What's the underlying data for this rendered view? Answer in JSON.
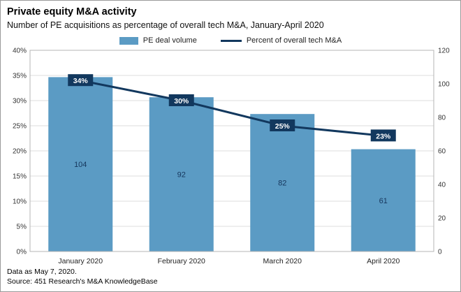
{
  "title": "Private equity M&A activity",
  "subtitle": "Number of PE acquisitions as percentage of overall tech M&A, January-April 2020",
  "footer": {
    "note": "Data as May 7, 2020.",
    "source": "Source: 451 Research's M&A KnowledgeBase"
  },
  "colors": {
    "bar": "#5b9bc4",
    "line": "#12385e",
    "label_box": "#12385e",
    "grid": "#dcdcdc",
    "plot_border": "#b5b5b5"
  },
  "chart_data": {
    "type": "bar",
    "subtype": "bar+line combo",
    "categories": [
      "January 2020",
      "February 2020",
      "March 2020",
      "April 2020"
    ],
    "series": [
      {
        "name": "PE deal volume",
        "type": "bar",
        "axis": "right",
        "values": [
          104,
          92,
          82,
          61
        ],
        "color": "#5b9bc4"
      },
      {
        "name": "Percent of overall tech M&A",
        "type": "line",
        "axis": "left",
        "values": [
          34,
          30,
          25,
          23
        ],
        "labels": [
          "34%",
          "30%",
          "25%",
          "23%"
        ],
        "color": "#12385e"
      }
    ],
    "left_axis": {
      "min": 0,
      "max": 40,
      "step": 5,
      "format": "percent",
      "tick_labels": [
        "0%",
        "5%",
        "10%",
        "15%",
        "20%",
        "25%",
        "30%",
        "35%",
        "40%"
      ]
    },
    "right_axis": {
      "min": 0,
      "max": 120,
      "step": 20,
      "tick_labels": [
        "0",
        "20",
        "40",
        "60",
        "80",
        "100",
        "120"
      ]
    },
    "grid": true,
    "legend_position": "top"
  }
}
